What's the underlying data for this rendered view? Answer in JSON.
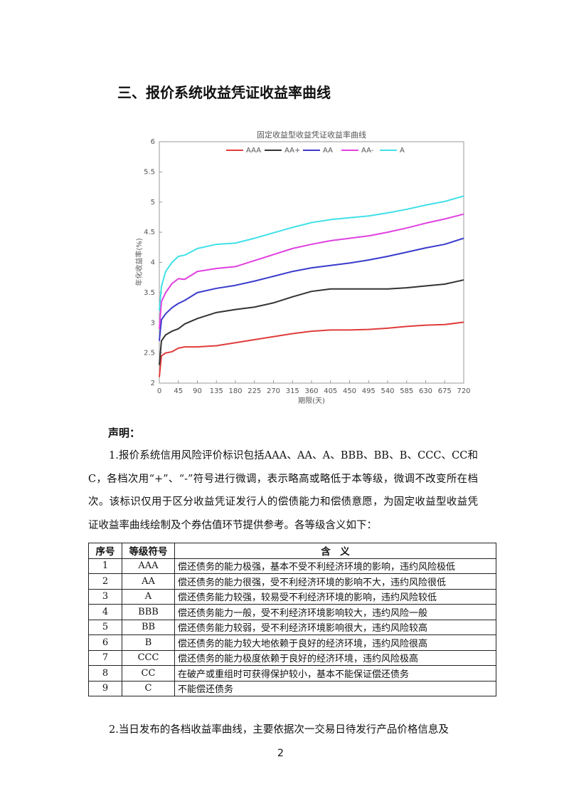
{
  "heading": "三、报价系统收益凭证收益率曲线",
  "chart_data": {
    "type": "line",
    "title": "固定收益型收益凭证收益率曲线",
    "x_label": "期限(天)",
    "y_label": "年化收益率(%)",
    "x": [
      0,
      5,
      15,
      30,
      45,
      60,
      90,
      135,
      180,
      225,
      270,
      315,
      360,
      405,
      450,
      495,
      540,
      585,
      630,
      675,
      720
    ],
    "series": [
      {
        "name": "AAA",
        "color": "#e03c3c",
        "values": [
          2.1,
          2.45,
          2.5,
          2.52,
          2.58,
          2.6,
          2.6,
          2.62,
          2.67,
          2.72,
          2.77,
          2.82,
          2.86,
          2.88,
          2.88,
          2.89,
          2.91,
          2.94,
          2.96,
          2.97,
          3.01
        ]
      },
      {
        "name": "AA+",
        "color": "#333333",
        "values": [
          2.3,
          2.7,
          2.8,
          2.86,
          2.9,
          2.98,
          3.07,
          3.17,
          3.22,
          3.26,
          3.33,
          3.43,
          3.52,
          3.56,
          3.56,
          3.56,
          3.56,
          3.58,
          3.61,
          3.64,
          3.71
        ]
      },
      {
        "name": "AA",
        "color": "#3a3acc",
        "values": [
          2.7,
          3.05,
          3.15,
          3.25,
          3.32,
          3.37,
          3.5,
          3.57,
          3.62,
          3.69,
          3.77,
          3.85,
          3.91,
          3.95,
          3.99,
          4.04,
          4.1,
          4.17,
          4.24,
          4.3,
          4.4
        ]
      },
      {
        "name": "AA-",
        "color": "#e040e0",
        "values": [
          2.9,
          3.35,
          3.5,
          3.65,
          3.73,
          3.72,
          3.85,
          3.9,
          3.93,
          4.03,
          4.13,
          4.23,
          4.3,
          4.36,
          4.4,
          4.44,
          4.5,
          4.57,
          4.65,
          4.72,
          4.8
        ]
      },
      {
        "name": "A",
        "color": "#40e0e8",
        "values": [
          3.2,
          3.6,
          3.85,
          4.0,
          4.1,
          4.12,
          4.23,
          4.3,
          4.32,
          4.4,
          4.49,
          4.58,
          4.66,
          4.71,
          4.74,
          4.77,
          4.82,
          4.88,
          4.95,
          5.01,
          5.1
        ]
      }
    ],
    "xlim": [
      0,
      720
    ],
    "xticks": [
      0,
      45,
      90,
      135,
      180,
      225,
      270,
      315,
      360,
      405,
      450,
      495,
      540,
      585,
      630,
      675,
      720
    ],
    "ylim": [
      2,
      6
    ],
    "yticks": [
      2,
      2.5,
      3,
      3.5,
      4,
      4.5,
      5,
      5.5,
      6
    ],
    "grid": false,
    "legend": "top"
  },
  "statement_title": "声明：",
  "paragraphs": [
    "1.报价系统信用风险评价标识包括AAA、AA、A、BBB、BB、B、CCC、CC和C，各档次用“+”、“-”符号进行微调，表示略高或略低于本等级，微调不改变所在档次。该标识仅用于区分收益凭证发行人的偿债能力和偿债意愿，为固定收益型收益凭证收益率曲线绘制及个券估值环节提供参考。各等级含义如下：",
    "2.当日发布的各档收益率曲线，主要依据次一交易日待发行产品价格信息及"
  ],
  "table": {
    "header": [
      "序号",
      "等级符号",
      "含　义"
    ],
    "rows": [
      [
        "1",
        "AAA",
        "偿还债务的能力极强，基本不受不利经济环境的影响，违约风险极低"
      ],
      [
        "2",
        "AA",
        "偿还债务的能力很强，受不利经济环境的影响不大，违约风险很低"
      ],
      [
        "3",
        "A",
        "偿还债务能力较强，较易受不利经济环境的影响，违约风险较低"
      ],
      [
        "4",
        "BBB",
        "偿还债务能力一般，受不利经济环境影响较大，违约风险一般"
      ],
      [
        "5",
        "BB",
        "偿还债务能力较弱，受不利经济环境影响很大，违约风险较高"
      ],
      [
        "6",
        "B",
        "偿还债务的能力较大地依赖于良好的经济环境，违约风险很高"
      ],
      [
        "7",
        "CCC",
        "偿还债务的能力极度依赖于良好的经济环境，违约风险极高"
      ],
      [
        "8",
        "CC",
        "在破产或重组时可获得保护较小，基本不能保证偿还债务"
      ],
      [
        "9",
        "C",
        "不能偿还债务"
      ]
    ]
  },
  "page_number": "2"
}
